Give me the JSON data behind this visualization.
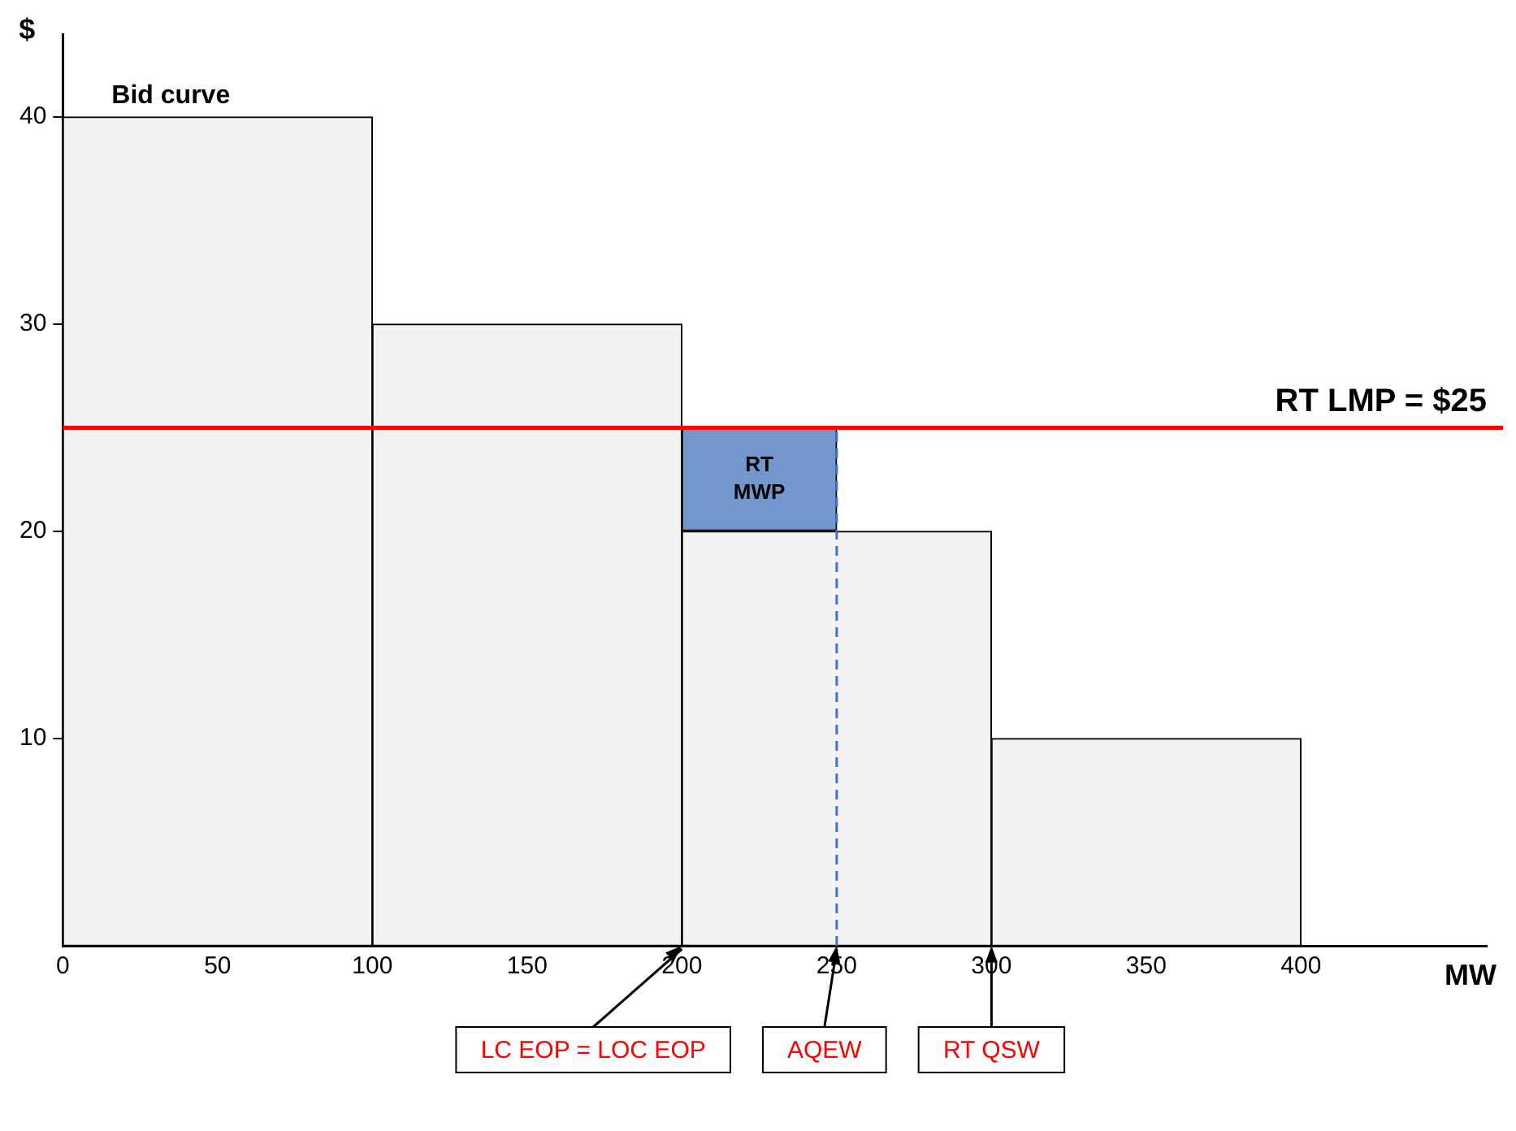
{
  "chart_data": {
    "type": "histogram",
    "xlabel": "MW",
    "ylabel": "$",
    "series": [
      {
        "bins": [
          0,
          100,
          200,
          300,
          400
        ],
        "values": [
          40,
          30,
          20,
          10
        ],
        "color": "#f2f2f2"
      },
      {
        "type": "histogram",
        "name": "RT MWP",
        "bins": [
          200,
          250
        ],
        "base": [
          20
        ],
        "values": [
          5
        ],
        "color": "#7397cc"
      },
      {
        "type": "line",
        "x": [
          250,
          250
        ],
        "values": [
          0,
          25
        ],
        "color": "#4472c4",
        "line_style": "dashed",
        "marker": "none"
      }
    ],
    "xlim": [
      0,
      460
    ],
    "ylim": [
      0,
      44
    ],
    "xticks": [
      0,
      50,
      100,
      150,
      200,
      250,
      300,
      350,
      400
    ],
    "yticks": [
      10,
      20,
      30,
      40
    ],
    "ref_lines": [
      {
        "axis": "y",
        "value": 25,
        "label": "RT LMP = $25",
        "color": "#ff0000"
      }
    ],
    "annotations": [
      "Bid curve",
      {
        "text": "LC EOP = LOC EOP",
        "x": 200,
        "y": 0
      },
      {
        "text": "AQEW",
        "x": 250,
        "y": 0
      },
      {
        "text": "RT QSW",
        "x": 300,
        "y": 0
      }
    ]
  }
}
